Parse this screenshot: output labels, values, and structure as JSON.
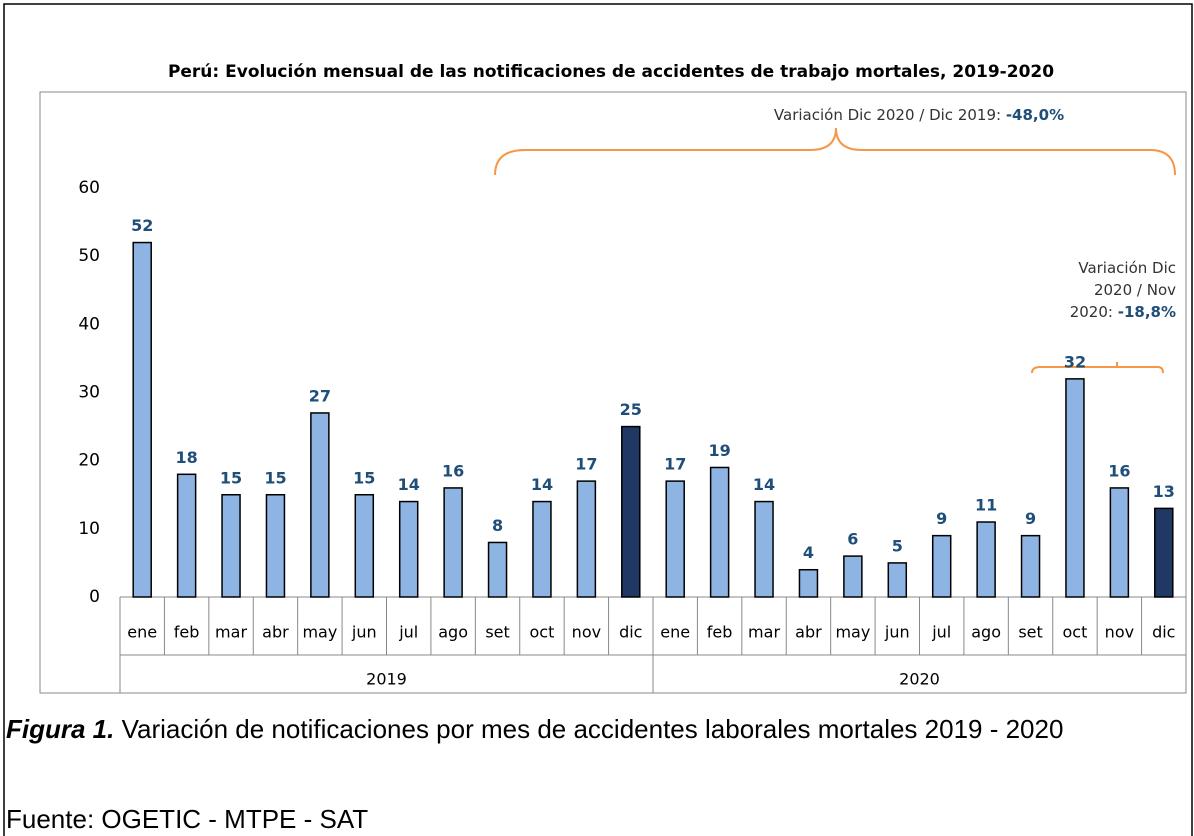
{
  "chart_data": {
    "type": "bar",
    "title": "Perú: Evolución mensual de las notificaciones de accidentes de trabajo mortales, 2019-2020",
    "categories": [
      "ene",
      "feb",
      "mar",
      "abr",
      "may",
      "jun",
      "jul",
      "ago",
      "set",
      "oct",
      "nov",
      "dic",
      "ene",
      "feb",
      "mar",
      "abr",
      "may",
      "jun",
      "jul",
      "ago",
      "set",
      "oct",
      "nov",
      "dic"
    ],
    "groups": [
      {
        "name": "2019",
        "count": 12
      },
      {
        "name": "2020",
        "count": 12
      }
    ],
    "values": [
      52,
      18,
      15,
      15,
      27,
      15,
      14,
      16,
      8,
      14,
      17,
      25,
      17,
      19,
      14,
      4,
      6,
      5,
      9,
      11,
      9,
      32,
      16,
      13
    ],
    "colors": [
      "#8db4e2",
      "#8db4e2",
      "#8db4e2",
      "#8db4e2",
      "#8db4e2",
      "#8db4e2",
      "#8db4e2",
      "#8db4e2",
      "#8db4e2",
      "#8db4e2",
      "#8db4e2",
      "#1f3864",
      "#8db4e2",
      "#8db4e2",
      "#8db4e2",
      "#8db4e2",
      "#8db4e2",
      "#8db4e2",
      "#8db4e2",
      "#8db4e2",
      "#8db4e2",
      "#8db4e2",
      "#8db4e2",
      "#1f3864"
    ],
    "ylim": [
      0,
      60
    ],
    "yticks": [
      0,
      10,
      20,
      30,
      40,
      50,
      60
    ],
    "annotations": [
      {
        "lines": [
          "Variación Dic 2020 / Dic 2019:"
        ],
        "value_text": "-48,0%"
      },
      {
        "lines": [
          "Variación Dic",
          "2020 / Nov",
          "2020:"
        ],
        "value_text": "-18,8%"
      }
    ]
  },
  "figure": {
    "label": "Figura 1.",
    "caption": "Variación de notificaciones por mes de accidentes laborales mortales 2019 - 2020",
    "source": "Fuente: OGETIC - MTPE - SAT"
  }
}
